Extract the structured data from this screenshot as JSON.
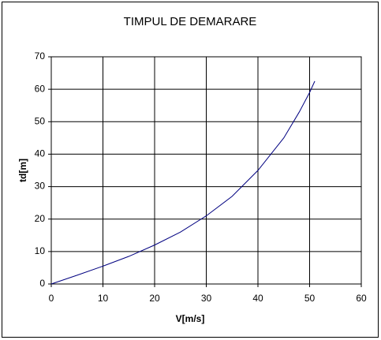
{
  "chart_data": {
    "type": "line",
    "title": "TIMPUL DE DEMARARE",
    "x_label": "V[m/s]",
    "y_label": "td[m]",
    "x": [
      0,
      5,
      10,
      15,
      20,
      25,
      30,
      35,
      40,
      43,
      45,
      48,
      50,
      51
    ],
    "series": [
      {
        "name": "td",
        "color": "#000080",
        "values": [
          0,
          2.7,
          5.5,
          8.5,
          12,
          16,
          21,
          27,
          35,
          41,
          45,
          53,
          59,
          62.5
        ]
      }
    ],
    "xlim": [
      0,
      60
    ],
    "xticks": [
      0,
      10,
      20,
      30,
      40,
      50,
      60
    ],
    "ylim": [
      0,
      70
    ],
    "yticks": [
      0,
      10,
      20,
      30,
      40,
      50,
      60,
      70
    ],
    "grid": true
  }
}
